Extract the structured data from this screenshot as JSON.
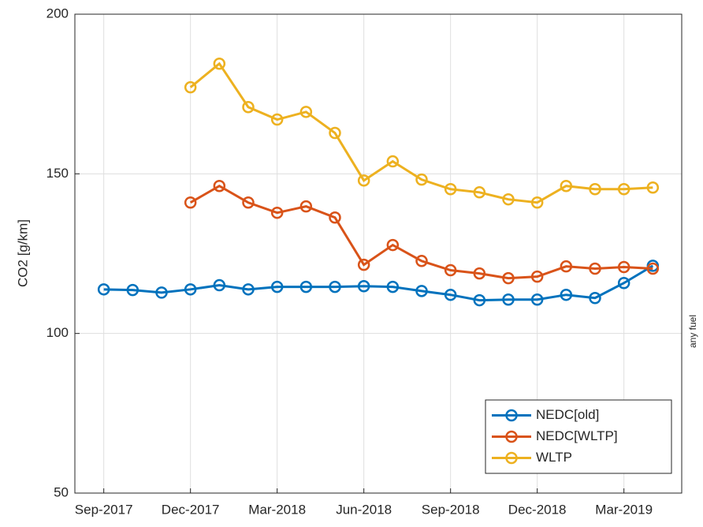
{
  "chart_data": {
    "type": "line",
    "ylabel": "CO2 [g/km]",
    "side_label": "any fuel",
    "categories": [
      "Sep-2017",
      null,
      null,
      "Dec-2017",
      null,
      null,
      "Mar-2018",
      null,
      null,
      "Jun-2018",
      null,
      null,
      "Sep-2018",
      null,
      null,
      "Dec-2018",
      null,
      null,
      "Mar-2019",
      null
    ],
    "series": [
      {
        "name": "NEDC[old]",
        "color": "#0072bd",
        "values": [
          113.8,
          113.6,
          112.8,
          113.8,
          115.1,
          113.8,
          114.6,
          114.6,
          114.6,
          114.8,
          114.6,
          113.3,
          112.1,
          110.4,
          110.6,
          110.6,
          112.1,
          111.1,
          115.8,
          121.2
        ]
      },
      {
        "name": "NEDC[WLTP]",
        "color": "#d95319",
        "values": [
          null,
          null,
          null,
          141.0,
          146.2,
          141.0,
          137.8,
          139.8,
          136.3,
          121.5,
          127.7,
          122.7,
          119.8,
          118.8,
          117.3,
          117.8,
          121.0,
          120.3,
          120.8,
          120.3
        ]
      },
      {
        "name": "WLTP",
        "color": "#edb120",
        "values": [
          null,
          null,
          null,
          177.1,
          184.5,
          170.9,
          167.0,
          169.4,
          162.8,
          147.9,
          153.9,
          148.2,
          145.2,
          144.2,
          142.0,
          141.0,
          146.2,
          145.2,
          145.2,
          145.7
        ]
      }
    ],
    "ylim": [
      50,
      200
    ],
    "yticks": [
      50,
      100,
      150,
      200
    ],
    "grid": true,
    "legend": "bottom-right"
  }
}
